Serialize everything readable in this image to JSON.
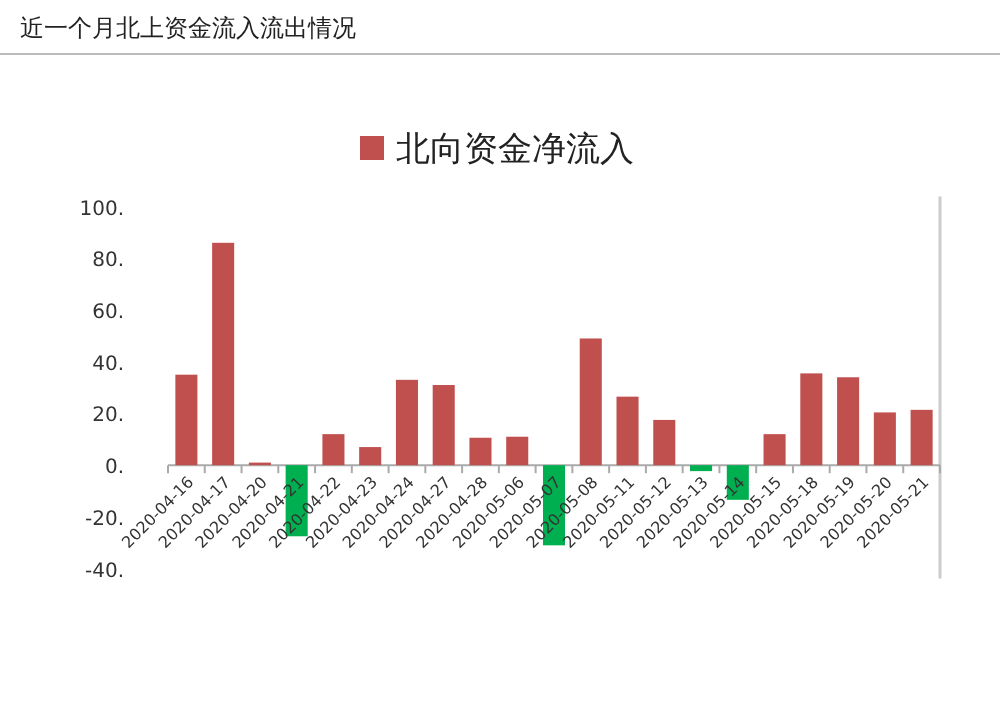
{
  "chart_data": {
    "type": "bar",
    "title": "近一个月北上资金流入流出情况",
    "categories": [
      "2020-04-16",
      "2020-04-17",
      "2020-04-20",
      "2020-04-21",
      "2020-04-22",
      "2020-04-23",
      "2020-04-24",
      "2020-04-27",
      "2020-04-28",
      "2020-05-06",
      "2020-05-07",
      "2020-05-08",
      "2020-05-11",
      "2020-05-12",
      "2020-05-13",
      "2020-05-14",
      "2020-05-15",
      "2020-05-18",
      "2020-05-19",
      "2020-05-20",
      "2020-05-21"
    ],
    "series": [
      {
        "name": "北向资金净流入",
        "color": "#c0504d",
        "colors": [
          "#c0504d",
          "#c0504d",
          "#c0504d",
          "#00b050",
          "#c0504d",
          "#c0504d",
          "#c0504d",
          "#c0504d",
          "#c0504d",
          "#c0504d",
          "#00b050",
          "#c0504d",
          "#c0504d",
          "#c0504d",
          "#00b050",
          "#00b050",
          "#c0504d",
          "#c0504d",
          "#c0504d",
          "#c0504d",
          "#c0504d"
        ],
        "values": [
          35,
          86,
          1,
          -27.5,
          12,
          7,
          33,
          31,
          10.6,
          11,
          -31,
          49,
          26.5,
          17.5,
          -2.3,
          -13.4,
          12,
          35.5,
          34,
          20.4,
          21.4
        ]
      }
    ],
    "ylim": [
      -40,
      100
    ],
    "yticks": [
      {
        "value": -40,
        "label": "-40."
      },
      {
        "value": -20,
        "label": "-20."
      },
      {
        "value": 0,
        "label": "0."
      },
      {
        "value": 20,
        "label": "20."
      },
      {
        "value": 40,
        "label": "40."
      },
      {
        "value": 60,
        "label": "60."
      },
      {
        "value": 80,
        "label": "80."
      },
      {
        "value": 100,
        "label": "100."
      }
    ],
    "legend": "top"
  }
}
